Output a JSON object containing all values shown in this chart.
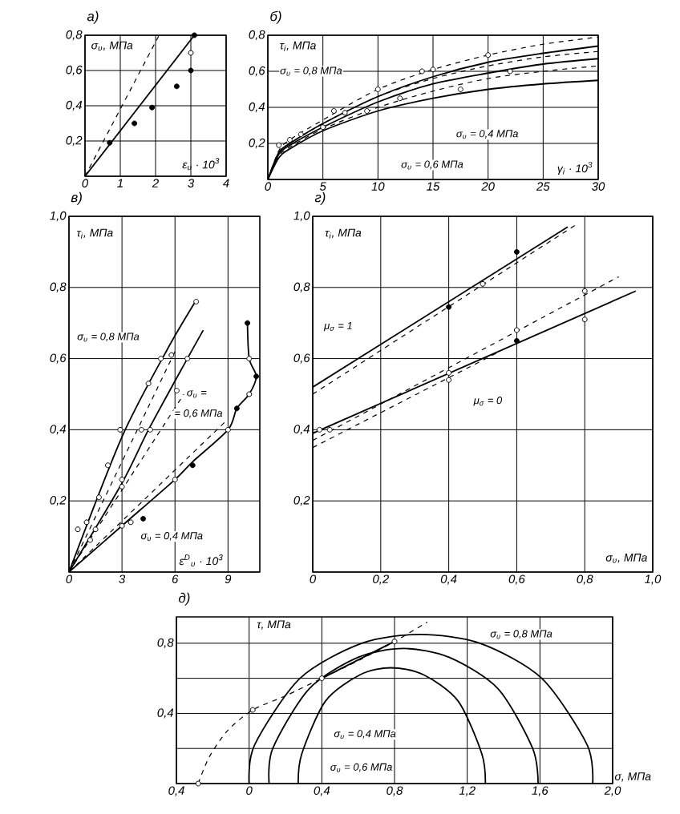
{
  "chart_data": [
    {
      "type": "line",
      "title": "а)",
      "xlabel": "ε$_{υ}$ · 10$^{3}$",
      "ylabel": "σ$_{υ}$, МПа",
      "xlim": [
        0,
        4
      ],
      "ylim": [
        0,
        0.8
      ],
      "xticks": [
        0,
        1,
        2,
        3,
        4
      ],
      "yticks": [
        {
          "value": 0,
          "label": null
        },
        {
          "value": 0.2,
          "label": "0,2"
        },
        {
          "value": 0.4,
          "label": "0,4"
        },
        {
          "value": 0.6,
          "label": "0,6"
        },
        {
          "value": 0.8,
          "label": "0,8"
        }
      ],
      "grid": true,
      "series": [
        {
          "color": "#000000",
          "line_style": "solid",
          "marker": "none",
          "x": [
            0,
            3.1
          ],
          "values": [
            0,
            0.8
          ]
        },
        {
          "color": "#000000",
          "line_style": "dashed",
          "marker": "none",
          "x": [
            0,
            2.1
          ],
          "values": [
            0,
            0.8
          ]
        },
        {
          "type": "scatter",
          "color": "#000000",
          "marker": "circle",
          "x": [
            0.7,
            1.4,
            1.9,
            2.6,
            3.0,
            3.1
          ],
          "values": [
            0.19,
            0.3,
            0.39,
            0.51,
            0.6,
            0.8
          ]
        },
        {
          "type": "scatter",
          "color": "#ffffff",
          "marker": "circle",
          "x": [
            3.0
          ],
          "values": [
            0.7
          ]
        }
      ]
    },
    {
      "type": "line",
      "title": "б)",
      "xlabel": "γ$_{i}$ · 10$^{3}$",
      "ylabel": "τ$_{i}$, МПа",
      "xlim": [
        0,
        30
      ],
      "ylim": [
        0,
        0.8
      ],
      "xticks": [
        0,
        5,
        10,
        15,
        20,
        25,
        30
      ],
      "yticks": [
        {
          "value": 0,
          "label": null
        },
        {
          "value": 0.2,
          "label": "0,2"
        },
        {
          "value": 0.4,
          "label": "0,4"
        },
        {
          "value": 0.6,
          "label": "0,6"
        },
        {
          "value": 0.8,
          "label": "0,8"
        }
      ],
      "grid": true,
      "annotations": [
        "σ$_{υ}$ = 0,8 МПа",
        "σ$_{υ}$ = 0,6 МПа",
        "σ$_{υ}$ = 0,4 МПа"
      ],
      "series": [
        {
          "color": "#000000",
          "line_style": "solid",
          "marker": "none",
          "x": [
            0,
            1,
            2,
            5,
            10,
            15,
            20,
            25,
            30
          ],
          "values": [
            0,
            0.15,
            0.2,
            0.31,
            0.46,
            0.57,
            0.65,
            0.7,
            0.74
          ]
        },
        {
          "color": "#000000",
          "line_style": "solid",
          "marker": "none",
          "x": [
            0,
            1,
            2,
            5,
            10,
            15,
            20,
            25,
            30
          ],
          "values": [
            0,
            0.14,
            0.19,
            0.29,
            0.43,
            0.53,
            0.59,
            0.64,
            0.67
          ]
        },
        {
          "color": "#000000",
          "line_style": "solid",
          "marker": "none",
          "x": [
            0,
            1,
            2,
            5,
            10,
            15,
            20,
            25,
            30
          ],
          "values": [
            0,
            0.12,
            0.17,
            0.27,
            0.38,
            0.45,
            0.5,
            0.53,
            0.55
          ]
        },
        {
          "color": "#000000",
          "line_style": "dashed",
          "marker": "none",
          "x": [
            0,
            1,
            2,
            5,
            10,
            15,
            20,
            25,
            30
          ],
          "values": [
            0,
            0.16,
            0.22,
            0.33,
            0.5,
            0.61,
            0.69,
            0.75,
            0.79
          ]
        },
        {
          "color": "#000000",
          "line_style": "dashed",
          "marker": "none",
          "x": [
            0,
            1,
            2,
            5,
            10,
            15,
            20,
            25,
            30
          ],
          "values": [
            0,
            0.15,
            0.2,
            0.31,
            0.46,
            0.56,
            0.63,
            0.68,
            0.71
          ]
        },
        {
          "color": "#000000",
          "line_style": "dashed",
          "marker": "none",
          "x": [
            0,
            1,
            2,
            5,
            10,
            15,
            20,
            25,
            30
          ],
          "values": [
            0,
            0.13,
            0.18,
            0.28,
            0.4,
            0.49,
            0.56,
            0.6,
            0.63
          ]
        },
        {
          "type": "scatter",
          "color": "#ffffff",
          "marker": "circle",
          "x": [
            1,
            2,
            3,
            5,
            6,
            7,
            9,
            10,
            12,
            14,
            15,
            17.5,
            20,
            22
          ],
          "values": [
            0.19,
            0.22,
            0.25,
            0.29,
            0.38,
            0.37,
            0.38,
            0.5,
            0.45,
            0.6,
            0.61,
            0.5,
            0.69,
            0.6
          ]
        }
      ]
    },
    {
      "type": "line",
      "title": "в)",
      "xlabel": "ε$^{D}$$_{υ}$ · 10$^{3}$",
      "ylabel": "τ$_{i}$, МПа",
      "xlim": [
        0,
        10.8
      ],
      "ylim": [
        0,
        1.0
      ],
      "xticks": [
        0,
        3,
        6,
        9
      ],
      "yticks": [
        {
          "value": 0,
          "label": null
        },
        {
          "value": 0.2,
          "label": "0,2"
        },
        {
          "value": 0.4,
          "label": "0,4"
        },
        {
          "value": 0.6,
          "label": "0,6"
        },
        {
          "value": 0.8,
          "label": "0,8"
        },
        {
          "value": 1.0,
          "label": "1,0"
        }
      ],
      "grid": true,
      "annotations": [
        "σ$_{υ}$ = 0,8 МПа",
        "σ$_{υ}$ =",
        "= 0,6 МПа",
        "σ$_{υ}$ = 0,4 МПа"
      ],
      "series": [
        {
          "color": "#000000",
          "line_style": "solid",
          "marker": "none",
          "x": [
            0,
            3,
            5.5,
            7.15
          ],
          "values": [
            0,
            0.38,
            0.62,
            0.76
          ]
        },
        {
          "color": "#000000",
          "line_style": "solid",
          "marker": "none",
          "x": [
            0,
            3,
            4.5,
            6.7,
            7.6
          ],
          "values": [
            0,
            0.25,
            0.4,
            0.6,
            0.68
          ]
        },
        {
          "color": "#000000",
          "line_style": "solid",
          "marker": "none",
          "x": [
            0,
            3,
            6,
            7,
            9,
            9.5,
            10.2,
            10.6,
            10.2,
            10.1
          ],
          "values": [
            0,
            0.13,
            0.26,
            0.31,
            0.4,
            0.46,
            0.5,
            0.55,
            0.6,
            0.7
          ]
        },
        {
          "color": "#000000",
          "line_style": "dashed",
          "marker": "none",
          "x": [
            0,
            6
          ],
          "values": [
            0,
            0.62
          ]
        },
        {
          "color": "#000000",
          "line_style": "dashed",
          "marker": "none",
          "x": [
            0,
            6.5
          ],
          "values": [
            0,
            0.5
          ]
        },
        {
          "color": "#000000",
          "line_style": "dashed",
          "marker": "none",
          "x": [
            0,
            9
          ],
          "values": [
            0,
            0.43
          ]
        },
        {
          "type": "scatter",
          "color": "#ffffff",
          "marker": "circle",
          "x": [
            0.5,
            1.0,
            1.7,
            2.2,
            2.9,
            4.5,
            5.2,
            5.8,
            7.2,
            1.2,
            1.5,
            3.0,
            3.0,
            4.1,
            4.6,
            6.1,
            6.7,
            3.0,
            3.5,
            6.0,
            9.0,
            10.2,
            10.2
          ],
          "values": [
            0.12,
            0.14,
            0.21,
            0.3,
            0.4,
            0.53,
            0.6,
            0.61,
            0.76,
            0.09,
            0.12,
            0.24,
            0.26,
            0.4,
            0.4,
            0.51,
            0.6,
            0.13,
            0.14,
            0.26,
            0.4,
            0.5,
            0.6
          ]
        },
        {
          "type": "scatter",
          "color": "#000000",
          "marker": "circle",
          "x": [
            4.2,
            7.0,
            9.5,
            10.6,
            10.1
          ],
          "values": [
            0.15,
            0.3,
            0.46,
            0.55,
            0.7
          ]
        }
      ]
    },
    {
      "type": "line",
      "title": "г)",
      "xlabel": "σ$_{υ}$, МПа",
      "ylabel": "τ$_{i}$, МПа",
      "xlim": [
        0,
        1.0
      ],
      "ylim": [
        0,
        1.0
      ],
      "xticks": [
        0,
        {
          "value": 0.2,
          "label": "0,2"
        },
        {
          "value": 0.4,
          "label": "0,4"
        },
        {
          "value": 0.6,
          "label": "0,6"
        },
        {
          "value": 0.8,
          "label": "0,8"
        },
        {
          "value": 1.0,
          "label": "1,0"
        }
      ],
      "yticks": [
        {
          "value": 0,
          "label": null
        },
        {
          "value": 0.2,
          "label": "0,2"
        },
        {
          "value": 0.4,
          "label": "0,4"
        },
        {
          "value": 0.6,
          "label": "0,6"
        },
        {
          "value": 0.8,
          "label": "0,8"
        },
        {
          "value": 1.0,
          "label": "1,0"
        }
      ],
      "grid": true,
      "annotations": [
        "μ$_{σ}$ = 1",
        "μ$_{σ}$ = 0"
      ],
      "series": [
        {
          "color": "#000000",
          "line_style": "solid",
          "marker": "none",
          "x": [
            0,
            0.75
          ],
          "values": [
            0.52,
            0.97
          ]
        },
        {
          "color": "#000000",
          "line_style": "dashed",
          "marker": "none",
          "x": [
            0,
            0.78
          ],
          "values": [
            0.5,
            0.98
          ]
        },
        {
          "color": "#000000",
          "line_style": "solid",
          "marker": "none",
          "x": [
            0,
            0.95
          ],
          "values": [
            0.39,
            0.79
          ]
        },
        {
          "color": "#000000",
          "line_style": "dashed",
          "marker": "none",
          "x": [
            0,
            0.9
          ],
          "values": [
            0.37,
            0.83
          ]
        },
        {
          "color": "#000000",
          "line_style": "dashed",
          "marker": "none",
          "x": [
            0,
            0.55
          ],
          "values": [
            0.35,
            0.62
          ]
        },
        {
          "type": "scatter",
          "color": "#000000",
          "marker": "circle",
          "x": [
            0.4,
            0.6,
            0.6
          ],
          "values": [
            0.745,
            0.9,
            0.65
          ]
        },
        {
          "type": "scatter",
          "color": "#ffffff",
          "marker": "circle",
          "x": [
            0.02,
            0.05,
            0.4,
            0.4,
            0.5,
            0.6,
            0.8,
            0.8
          ],
          "values": [
            0.4,
            0.4,
            0.56,
            0.54,
            0.81,
            0.68,
            0.79,
            0.71
          ]
        }
      ]
    },
    {
      "type": "line",
      "title": "д)",
      "xlabel": "σ, МПа",
      "ylabel": "τ, МПа",
      "xlim": [
        -0.4,
        2.0
      ],
      "ylim": [
        0,
        0.95
      ],
      "xticks": [
        {
          "value": -0.4,
          "label": "0,4"
        },
        0,
        {
          "value": 0.4,
          "label": "0,4"
        },
        {
          "value": 0.8,
          "label": "0,8"
        },
        {
          "value": 1.2,
          "label": "1,2"
        },
        {
          "value": 1.6,
          "label": "1,6"
        },
        {
          "value": 2.0,
          "label": "2,0"
        }
      ],
      "yticks": [
        {
          "value": 0,
          "label": null
        },
        {
          "value": 0.2,
          "label": null
        },
        {
          "value": 0.4,
          "label": "0,4"
        },
        {
          "value": 0.6,
          "label": null
        },
        {
          "value": 0.8,
          "label": "0,8"
        }
      ],
      "grid": true,
      "annotations": [
        "σ$_{υ}$ = 0,8 МПа",
        "σ$_{υ}$ = 0,4 МПа",
        "σ$_{υ}$ = 0,6 МПа"
      ],
      "series": [
        {
          "color": "#000000",
          "line_style": "solid",
          "marker": "none",
          "x": [
            1.3,
            1.28,
            1.15,
            0.96,
            0.78,
            0.61,
            0.42,
            0.29,
            0.27
          ],
          "values": [
            0,
            0.17,
            0.47,
            0.62,
            0.66,
            0.62,
            0.47,
            0.17,
            0
          ]
        },
        {
          "color": "#000000",
          "line_style": "solid",
          "marker": "none",
          "x": [
            1.59,
            1.56,
            1.37,
            1.1,
            0.85,
            0.6,
            0.33,
            0.13,
            0.11
          ],
          "values": [
            0,
            0.2,
            0.54,
            0.72,
            0.77,
            0.72,
            0.54,
            0.2,
            0
          ]
        },
        {
          "color": "#000000",
          "line_style": "solid",
          "marker": "none",
          "x": [
            1.89,
            1.86,
            1.61,
            1.27,
            0.94,
            0.62,
            0.28,
            0.03,
            0
          ],
          "values": [
            0,
            0.22,
            0.6,
            0.8,
            0.85,
            0.8,
            0.6,
            0.22,
            0
          ]
        },
        {
          "color": "#000000",
          "line_style": "dashed",
          "marker": "none",
          "x": [
            -0.28,
            -0.22,
            -0.12,
            0.02,
            0.2,
            0.4,
            0.6,
            0.8,
            0.98
          ],
          "values": [
            0,
            0.15,
            0.3,
            0.42,
            0.5,
            0.6,
            0.7,
            0.81,
            0.92
          ]
        },
        {
          "color": "#000000",
          "line_style": "solid",
          "marker": "none",
          "x": [
            0.4,
            0.8
          ],
          "values": [
            0.6,
            0.81
          ]
        },
        {
          "type": "scatter",
          "color": "#ffffff",
          "marker": "circle",
          "x": [
            -0.28,
            0.02,
            0.4,
            0.8
          ],
          "values": [
            0,
            0.42,
            0.6,
            0.81
          ]
        }
      ]
    }
  ]
}
